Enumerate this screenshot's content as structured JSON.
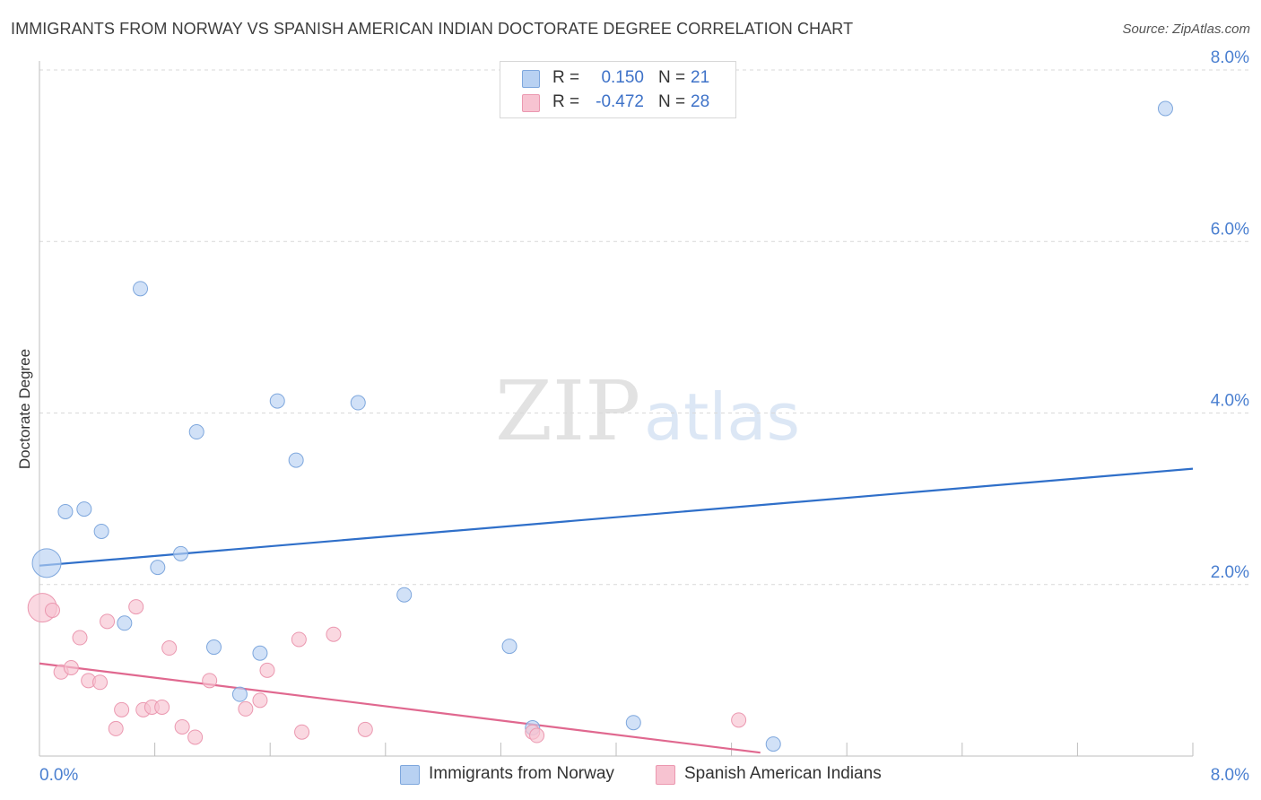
{
  "header": {
    "title": "IMMIGRANTS FROM NORWAY VS SPANISH AMERICAN INDIAN DOCTORATE DEGREE CORRELATION CHART",
    "source": "Source: ZipAtlas.com"
  },
  "watermark": {
    "zip": "ZIP",
    "atlas": "atlas"
  },
  "legend": {
    "rows": [
      {
        "r_label": "R =",
        "r_value": "0.150",
        "n_label": "N =",
        "n_value": "21"
      },
      {
        "r_label": "R =",
        "r_value": "-0.472",
        "n_label": "N =",
        "n_value": "28"
      }
    ]
  },
  "bottom_legend": {
    "items": [
      {
        "label": "Immigrants from Norway"
      },
      {
        "label": "Spanish American Indians"
      }
    ]
  },
  "colors": {
    "blue_fill": "#b8d1f2",
    "blue_stroke": "#7ea7dd",
    "blue_line": "#2f6fc9",
    "pink_fill": "#f7c3d1",
    "pink_stroke": "#eb98b0",
    "pink_line": "#e0688f",
    "tick_label": "#4a7fd0",
    "grid": "#d9d9d9"
  },
  "chart_data": {
    "type": "scatter",
    "title": "IMMIGRANTS FROM NORWAY VS SPANISH AMERICAN INDIAN DOCTORATE DEGREE CORRELATION CHART",
    "xlabel": "",
    "ylabel": "Doctorate Degree",
    "xlim": [
      0,
      8
    ],
    "ylim": [
      0,
      8
    ],
    "x_tick_labels": [
      "0.0%",
      "8.0%"
    ],
    "y_ticks": [
      2,
      4,
      6,
      8
    ],
    "y_tick_labels": [
      "2.0%",
      "4.0%",
      "6.0%",
      "8.0%"
    ],
    "grid": true,
    "series": [
      {
        "name": "Immigrants from Norway",
        "points": [
          {
            "x": 0.05,
            "y": 2.25,
            "big": true
          },
          {
            "x": 0.18,
            "y": 2.85
          },
          {
            "x": 0.31,
            "y": 2.88
          },
          {
            "x": 0.43,
            "y": 2.62
          },
          {
            "x": 0.59,
            "y": 1.55
          },
          {
            "x": 0.7,
            "y": 5.45
          },
          {
            "x": 0.82,
            "y": 2.2
          },
          {
            "x": 0.98,
            "y": 2.36
          },
          {
            "x": 1.09,
            "y": 3.78
          },
          {
            "x": 1.21,
            "y": 1.27
          },
          {
            "x": 1.39,
            "y": 0.72
          },
          {
            "x": 1.65,
            "y": 4.14
          },
          {
            "x": 1.53,
            "y": 1.2
          },
          {
            "x": 1.78,
            "y": 3.45
          },
          {
            "x": 2.21,
            "y": 4.12
          },
          {
            "x": 2.53,
            "y": 1.88
          },
          {
            "x": 3.26,
            "y": 1.28
          },
          {
            "x": 3.42,
            "y": 0.33
          },
          {
            "x": 4.12,
            "y": 0.39
          },
          {
            "x": 5.09,
            "y": 0.14
          },
          {
            "x": 7.81,
            "y": 7.55
          }
        ],
        "trend": {
          "x": [
            0,
            8
          ],
          "y": [
            2.22,
            3.35
          ]
        }
      },
      {
        "name": "Spanish American Indians",
        "points": [
          {
            "x": 0.02,
            "y": 1.73,
            "big": true
          },
          {
            "x": 0.09,
            "y": 1.7
          },
          {
            "x": 0.15,
            "y": 0.98
          },
          {
            "x": 0.22,
            "y": 1.03
          },
          {
            "x": 0.28,
            "y": 1.38
          },
          {
            "x": 0.34,
            "y": 0.88
          },
          {
            "x": 0.42,
            "y": 0.86
          },
          {
            "x": 0.47,
            "y": 1.57
          },
          {
            "x": 0.53,
            "y": 0.32
          },
          {
            "x": 0.57,
            "y": 0.54
          },
          {
            "x": 0.67,
            "y": 1.74
          },
          {
            "x": 0.72,
            "y": 0.54
          },
          {
            "x": 0.78,
            "y": 0.57
          },
          {
            "x": 0.85,
            "y": 0.57
          },
          {
            "x": 0.9,
            "y": 1.26
          },
          {
            "x": 0.99,
            "y": 0.34
          },
          {
            "x": 1.08,
            "y": 0.22
          },
          {
            "x": 1.18,
            "y": 0.88
          },
          {
            "x": 1.43,
            "y": 0.55
          },
          {
            "x": 1.53,
            "y": 0.65
          },
          {
            "x": 1.58,
            "y": 1.0
          },
          {
            "x": 1.8,
            "y": 1.36
          },
          {
            "x": 1.82,
            "y": 0.28
          },
          {
            "x": 2.04,
            "y": 1.42
          },
          {
            "x": 2.26,
            "y": 0.31
          },
          {
            "x": 3.42,
            "y": 0.28
          },
          {
            "x": 3.45,
            "y": 0.24
          },
          {
            "x": 4.85,
            "y": 0.42
          }
        ],
        "trend": {
          "x": [
            0,
            5.0
          ],
          "y": [
            1.08,
            0.04
          ]
        }
      }
    ]
  }
}
